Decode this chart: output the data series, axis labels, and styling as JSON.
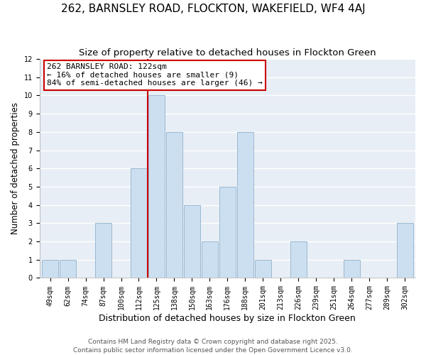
{
  "title": "262, BARNSLEY ROAD, FLOCKTON, WAKEFIELD, WF4 4AJ",
  "subtitle": "Size of property relative to detached houses in Flockton Green",
  "xlabel": "Distribution of detached houses by size in Flockton Green",
  "ylabel": "Number of detached properties",
  "bar_labels": [
    "49sqm",
    "62sqm",
    "74sqm",
    "87sqm",
    "100sqm",
    "112sqm",
    "125sqm",
    "138sqm",
    "150sqm",
    "163sqm",
    "176sqm",
    "188sqm",
    "201sqm",
    "213sqm",
    "226sqm",
    "239sqm",
    "251sqm",
    "264sqm",
    "277sqm",
    "289sqm",
    "302sqm"
  ],
  "bar_values": [
    1,
    1,
    0,
    3,
    0,
    6,
    10,
    8,
    4,
    2,
    5,
    8,
    1,
    0,
    2,
    0,
    0,
    1,
    0,
    0,
    3
  ],
  "bar_color": "#ccdff0",
  "bar_edge_color": "#9ab8d0",
  "vline_color": "#cc0000",
  "annotation_text": "262 BARNSLEY ROAD: 122sqm\n← 16% of detached houses are smaller (9)\n84% of semi-detached houses are larger (46) →",
  "annotation_box_color": "#ffffff",
  "annotation_box_edge_color": "#cc0000",
  "ylim": [
    0,
    12
  ],
  "yticks": [
    0,
    1,
    2,
    3,
    4,
    5,
    6,
    7,
    8,
    9,
    10,
    11,
    12
  ],
  "footer_line1": "Contains HM Land Registry data © Crown copyright and database right 2025.",
  "footer_line2": "Contains public sector information licensed under the Open Government Licence v3.0.",
  "plot_bg_color": "#e8eef5",
  "fig_bg_color": "#ffffff",
  "grid_color": "#ffffff",
  "title_fontsize": 11,
  "subtitle_fontsize": 9.5,
  "xlabel_fontsize": 9,
  "ylabel_fontsize": 8.5,
  "tick_fontsize": 7,
  "annotation_fontsize": 8,
  "footer_fontsize": 6.5
}
